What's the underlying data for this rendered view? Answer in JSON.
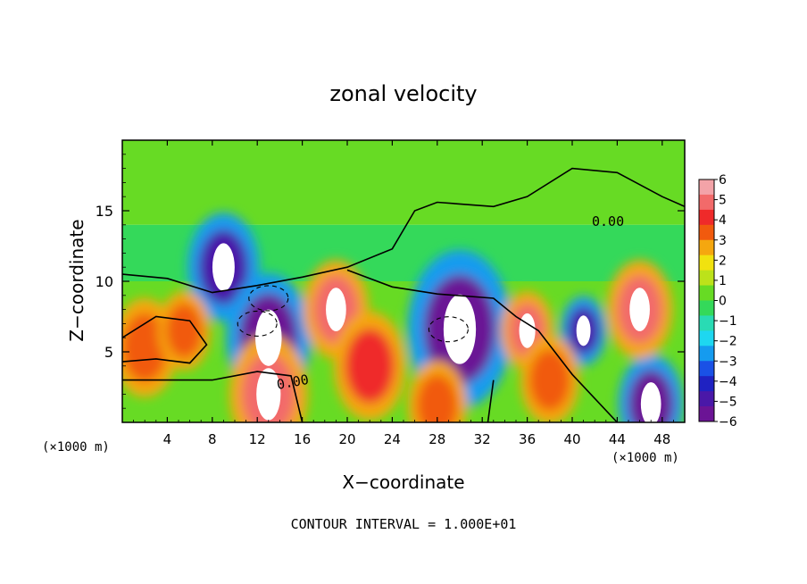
{
  "chart_data": {
    "type": "heatmap",
    "title": "zonal velocity",
    "xlabel": "X−coordinate",
    "ylabel": "Z−coordinate",
    "x_unit_left": "(×1000 m)",
    "x_unit_right": "(×1000 m)",
    "xlim": [
      0,
      50
    ],
    "ylim": [
      0,
      20
    ],
    "x_ticks": [
      4,
      8,
      12,
      16,
      20,
      24,
      28,
      32,
      36,
      40,
      44,
      48
    ],
    "y_ticks": [
      5,
      10,
      15
    ],
    "colorbar": {
      "ticks": [
        "6",
        "5",
        "4",
        "3",
        "2",
        "1",
        "0",
        "−1",
        "−2",
        "−3",
        "−4",
        "−5",
        "−6"
      ],
      "vmin": -6,
      "vmax": 6,
      "colors": [
        "#f3a3a8",
        "#f26a6a",
        "#ef2a2a",
        "#f15a0e",
        "#f5a70f",
        "#f1e20f",
        "#bce21a",
        "#67db24",
        "#34d95a",
        "#29dbb4",
        "#1ed7f0",
        "#159bef",
        "#1a51e6",
        "#1f22c2",
        "#4a18a8",
        "#6b1495"
      ]
    },
    "annotations": [
      "0.00",
      "0.00"
    ],
    "contour_level": "0.00",
    "footer": "CONTOUR INTERVAL = 1.000E+01",
    "features": [
      {
        "x": 9,
        "z": 11.0,
        "value": -5,
        "r": 2.2
      },
      {
        "x": 13,
        "z": 6.0,
        "value": -6,
        "r": 2.6
      },
      {
        "x": 30,
        "z": 6.6,
        "value": -6,
        "r": 3.2
      },
      {
        "x": 41,
        "z": 6.5,
        "value": -5,
        "r": 1.4
      },
      {
        "x": 47,
        "z": 1.3,
        "value": -6,
        "r": 2.0
      },
      {
        "x": 2,
        "z": 5.3,
        "value": 4,
        "r": 2.0
      },
      {
        "x": 5.5,
        "z": 6.5,
        "value": 3.5,
        "r": 1.6
      },
      {
        "x": 19,
        "z": 8.0,
        "value": 5,
        "r": 2.0
      },
      {
        "x": 22,
        "z": 4.0,
        "value": 4.5,
        "r": 2.2
      },
      {
        "x": 36,
        "z": 6.5,
        "value": 5,
        "r": 1.6
      },
      {
        "x": 38,
        "z": 3.0,
        "value": 4,
        "r": 1.8
      },
      {
        "x": 46,
        "z": 8.0,
        "value": 5,
        "r": 2.0
      },
      {
        "x": 13,
        "z": 2.0,
        "value": 5,
        "r": 2.4
      },
      {
        "x": 28,
        "z": 1.2,
        "value": 4,
        "r": 1.8
      }
    ]
  }
}
